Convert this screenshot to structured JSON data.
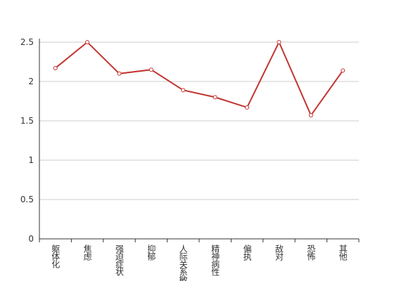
{
  "chart_data": {
    "type": "line",
    "categories": [
      "躯体化",
      "焦虑",
      "强迫症状",
      "抑郁",
      "人际关系敏感",
      "精神病性",
      "偏执",
      "敌对",
      "恐怖",
      "其他"
    ],
    "series": [
      {
        "color": "#c23531",
        "values": [
          2.17,
          2.5,
          2.1,
          2.15,
          1.89,
          1.8,
          1.67,
          2.5,
          1.57,
          2.14
        ]
      }
    ],
    "ylim": [
      0,
      2.5
    ],
    "yticks": [
      0,
      0.5,
      1,
      1.5,
      2,
      2.5
    ],
    "grid": true
  }
}
